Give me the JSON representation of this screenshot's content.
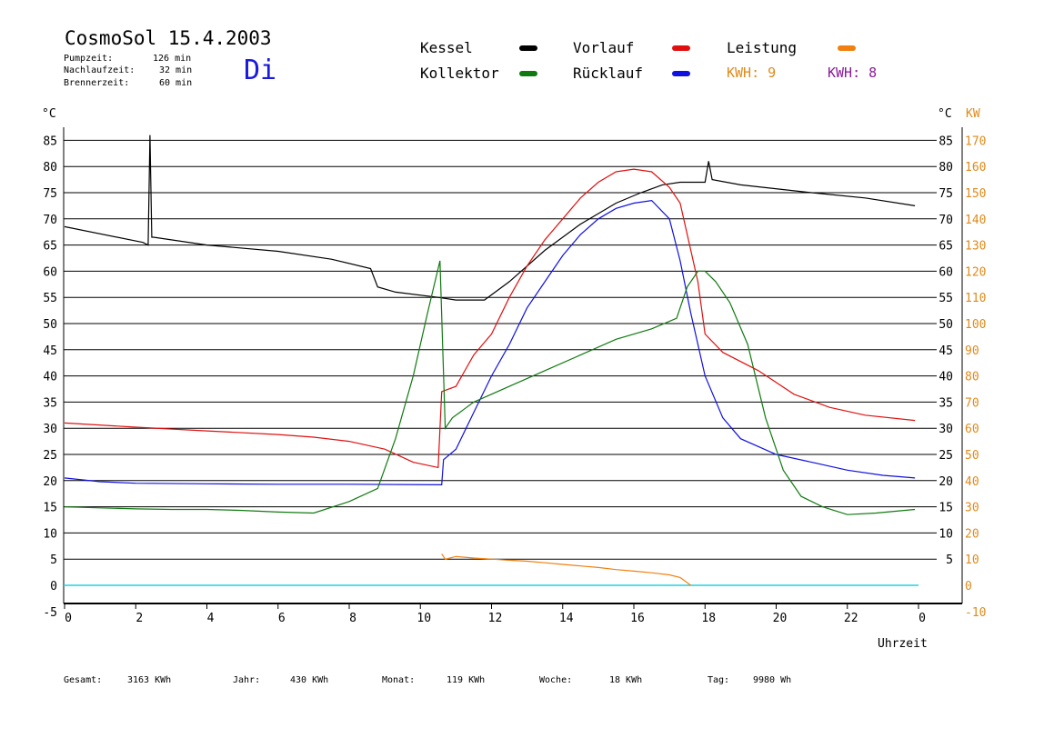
{
  "header": {
    "title": "CosmoSol 15.4.2003",
    "day": "Di",
    "params": [
      {
        "label": "Pumpzeit:",
        "value": "126 min"
      },
      {
        "label": "Nachlaufzeit:",
        "value": "32 min"
      },
      {
        "label": "Brennerzeit:",
        "value": "60 min"
      }
    ]
  },
  "legend": {
    "items": [
      {
        "label": "Kessel",
        "color": "#000000"
      },
      {
        "label": "Vorlauf",
        "color": "#e01010"
      },
      {
        "label": "Leistung",
        "color": "#f08010"
      },
      {
        "label": "Kollektor",
        "color": "#107a10"
      },
      {
        "label": "Rücklauf",
        "color": "#1010e0"
      }
    ],
    "kwh_orange": "KWH: 9",
    "kwh_purple": "KWH: 8",
    "kwh_orange_color": "#e08a1a",
    "kwh_purple_color": "#8a1a9a"
  },
  "axes": {
    "left_unit": "°C",
    "right_unit_c": "°C",
    "right_unit_kw": "KW",
    "x_title": "Uhrzeit"
  },
  "footer": [
    {
      "label": "Gesamt:",
      "value": "3163 KWh"
    },
    {
      "label": "Jahr:",
      "value": "430 KWh"
    },
    {
      "label": "Monat:",
      "value": "119 KWh"
    },
    {
      "label": "Woche:",
      "value": "18 KWh"
    },
    {
      "label": "Tag:",
      "value": "9980 Wh"
    }
  ],
  "chart_data": {
    "type": "line",
    "xlabel": "Uhrzeit",
    "ylabel": "°C",
    "y2label": "KW",
    "xlim": [
      0,
      24
    ],
    "ylim": [
      -5,
      90
    ],
    "y2lim": [
      -10,
      170
    ],
    "x_ticks": [
      "0",
      "2",
      "4",
      "6",
      "8",
      "10",
      "12",
      "14",
      "16",
      "18",
      "20",
      "22",
      "0"
    ],
    "y_ticks": [
      "-5",
      "0",
      "5",
      "10",
      "15",
      "20",
      "25",
      "30",
      "35",
      "40",
      "45",
      "50",
      "55",
      "60",
      "65",
      "70",
      "75",
      "80",
      "85"
    ],
    "y_right_c_ticks": [
      "5",
      "10",
      "15",
      "20",
      "25",
      "30",
      "35",
      "40",
      "45",
      "50",
      "55",
      "60",
      "65",
      "70",
      "75",
      "80",
      "85"
    ],
    "y_right_kw_ticks": [
      "-10",
      "0",
      "10",
      "20",
      "30",
      "40",
      "50",
      "60",
      "70",
      "80",
      "90",
      "100",
      "110",
      "120",
      "130",
      "140",
      "150",
      "160",
      "170"
    ],
    "grid": true,
    "series": [
      {
        "name": "Kessel",
        "color": "#000000",
        "x": [
          0,
          2.2,
          2.35,
          2.4,
          2.45,
          2.5,
          4,
          6,
          7.5,
          8.6,
          8.8,
          9.3,
          10.5,
          11,
          11.8,
          12.5,
          13.5,
          14.5,
          15.5,
          16.2,
          16.8,
          17.3,
          18,
          18.1,
          18.2,
          19,
          21,
          22.5,
          23.9
        ],
        "y": [
          68.5,
          65.5,
          65,
          86,
          66.5,
          66.5,
          65,
          63.8,
          62.3,
          60.5,
          57,
          56,
          55,
          54.5,
          54.5,
          58,
          64,
          69,
          73,
          75,
          76.5,
          77,
          77,
          81,
          77.5,
          76.5,
          75,
          74,
          72.5
        ]
      },
      {
        "name": "Vorlauf",
        "color": "#e01010",
        "x": [
          0,
          2,
          4,
          6,
          7,
          8,
          9,
          9.8,
          10.5,
          10.6,
          11,
          11.5,
          12,
          12.5,
          13,
          13.5,
          14,
          14.5,
          15,
          15.5,
          16,
          16.5,
          17,
          17.3,
          17.8,
          18,
          18.5,
          19.5,
          20.5,
          21.5,
          22.5,
          23.9
        ],
        "y": [
          31,
          30.2,
          29.5,
          28.8,
          28.3,
          27.5,
          26,
          23.5,
          22.5,
          37,
          38,
          44,
          48,
          55,
          61,
          66,
          70,
          74,
          77,
          79,
          79.5,
          79,
          76,
          73,
          58,
          48,
          44.5,
          41,
          36.5,
          34,
          32.5,
          31.5
        ]
      },
      {
        "name": "Rücklauf",
        "color": "#1010e0",
        "x": [
          0,
          1,
          2,
          4,
          6,
          8,
          10.6,
          10.65,
          11,
          11.5,
          12,
          12.5,
          13,
          13.5,
          14,
          14.5,
          15,
          15.5,
          16,
          16.5,
          17,
          17.3,
          17.6,
          18,
          18.5,
          19,
          20,
          21,
          22,
          23,
          23.9
        ],
        "y": [
          20.5,
          19.8,
          19.5,
          19.4,
          19.3,
          19.3,
          19.2,
          24,
          26,
          33,
          40,
          46,
          53,
          58,
          63,
          67,
          70,
          72,
          73,
          73.5,
          70,
          62,
          52,
          40,
          32,
          28,
          25,
          23.5,
          22,
          21,
          20.5
        ]
      },
      {
        "name": "Kollektor",
        "color": "#107a10",
        "x": [
          0,
          1,
          2,
          3,
          4,
          5,
          6,
          7,
          8,
          8.8,
          9.3,
          9.8,
          10.2,
          10.55,
          10.7,
          10.9,
          11.5,
          12.5,
          13.5,
          14.5,
          15.5,
          16.5,
          17.2,
          17.5,
          17.8,
          18,
          18.3,
          18.7,
          19.2,
          19.7,
          20.2,
          20.7,
          21.3,
          22,
          22.8,
          23.9
        ],
        "y": [
          15,
          14.8,
          14.6,
          14.5,
          14.5,
          14.3,
          14,
          13.8,
          16,
          18.5,
          28,
          40,
          52,
          62,
          30,
          32,
          35,
          38,
          41,
          44,
          47,
          49,
          51,
          57,
          60,
          60,
          58,
          54,
          46,
          32,
          22,
          17,
          15,
          13.5,
          13.8,
          14.5
        ]
      },
      {
        "name": "Leistung",
        "color": "#f08010",
        "x": [
          10.6,
          10.7,
          11,
          11.5,
          12,
          12.5,
          13,
          13.5,
          14,
          14.5,
          15,
          15.5,
          16,
          16.5,
          17,
          17.3,
          17.6
        ],
        "y": [
          6,
          5,
          5.5,
          5.2,
          5,
          4.8,
          4.6,
          4.3,
          4,
          3.7,
          3.4,
          3,
          2.7,
          2.4,
          2,
          1.5,
          0
        ]
      }
    ]
  }
}
